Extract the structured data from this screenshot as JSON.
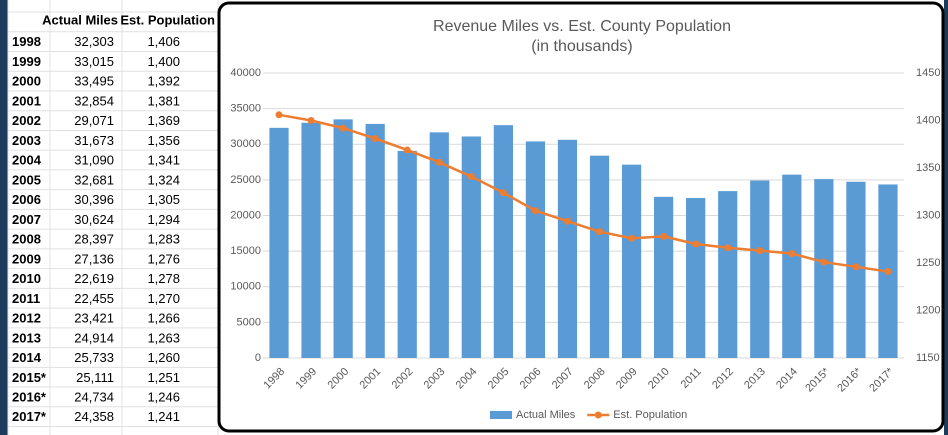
{
  "chart_data": {
    "type": "bar-line",
    "title": "Revenue Miles vs. Est. County Population",
    "subtitle": "(in thousands)",
    "categories": [
      "1998",
      "1999",
      "2000",
      "2001",
      "2002",
      "2003",
      "2004",
      "2005",
      "2006",
      "2007",
      "2008",
      "2009",
      "2010",
      "2011",
      "2012",
      "2013",
      "2014",
      "2015*",
      "2016*",
      "2017*"
    ],
    "series": [
      {
        "name": "Actual Miles",
        "color": "#5b9bd5",
        "kind": "bar",
        "values": [
          32303,
          33015,
          33495,
          32854,
          29071,
          31673,
          31090,
          32681,
          30396,
          30624,
          28397,
          27136,
          22619,
          22455,
          23421,
          24914,
          25733,
          25111,
          24734,
          24358
        ],
        "value_labels": [
          "32,303",
          "33,015",
          "33,495",
          "32,854",
          "29,071",
          "31,673",
          "31,090",
          "32,681",
          "30,396",
          "30,624",
          "28,397",
          "27,136",
          "22,619",
          "22,455",
          "23,421",
          "24,914",
          "25,733",
          "25,111",
          "24,734",
          "24,358"
        ]
      },
      {
        "name": "Est. Population",
        "color": "#ed7d31",
        "kind": "line",
        "axis": "y2",
        "values": [
          1406,
          1400,
          1392,
          1381,
          1369,
          1356,
          1341,
          1324,
          1305,
          1294,
          1283,
          1276,
          1278,
          1270,
          1266,
          1263,
          1260,
          1251,
          1246,
          1241
        ],
        "value_labels": [
          "1,406",
          "1,400",
          "1,392",
          "1,381",
          "1,369",
          "1,356",
          "1,341",
          "1,324",
          "1,305",
          "1,294",
          "1,283",
          "1,276",
          "1,278",
          "1,270",
          "1,266",
          "1,263",
          "1,260",
          "1,251",
          "1,246",
          "1,241"
        ]
      }
    ],
    "ylim": [
      0,
      40000
    ],
    "yticks": [
      0,
      5000,
      10000,
      15000,
      20000,
      25000,
      30000,
      35000,
      40000
    ],
    "y2lim": [
      1150,
      1450
    ],
    "y2ticks": [
      1150,
      1200,
      1250,
      1300,
      1350,
      1400,
      1450
    ],
    "grid": true,
    "legend": "bottom"
  }
}
